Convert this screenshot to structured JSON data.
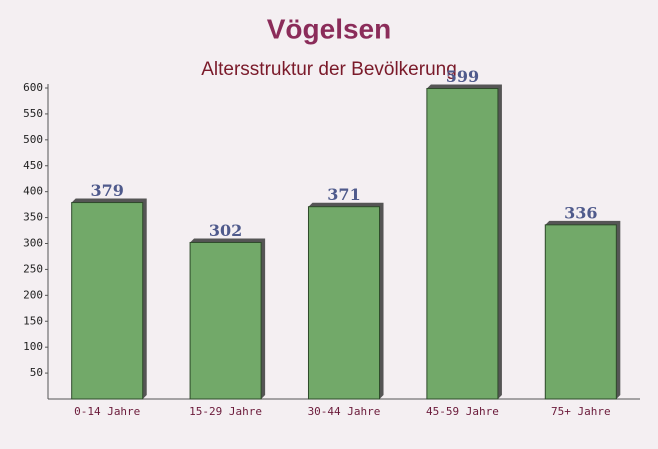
{
  "chart_data": {
    "type": "bar",
    "title": "Vögelsen",
    "subtitle": "Altersstruktur der Bevölkerung",
    "categories": [
      "0-14 Jahre",
      "15-29 Jahre",
      "30-44 Jahre",
      "45-59 Jahre",
      "75+ Jahre"
    ],
    "values": [
      379,
      302,
      371,
      599,
      336
    ],
    "color": "#6aa461",
    "ylim": [
      0,
      600
    ],
    "yticks": [
      50,
      100,
      150,
      200,
      250,
      300,
      350,
      400,
      450,
      500,
      550,
      600
    ],
    "grid": false
  }
}
